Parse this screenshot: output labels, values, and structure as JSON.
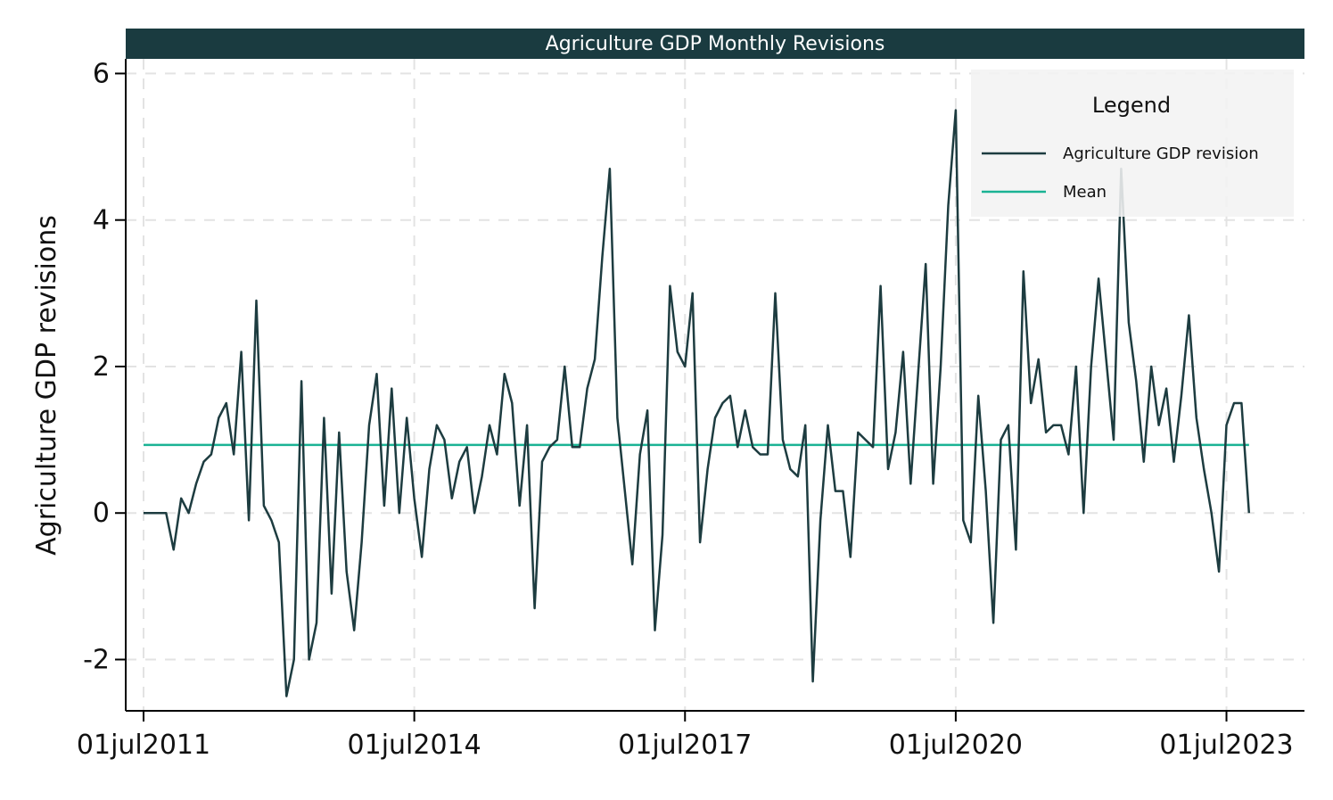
{
  "chart_data": {
    "type": "line",
    "title": "Agriculture GDP Monthly Revisions",
    "xlabel": "",
    "ylabel": "Agriculture GDP revisions",
    "x_start": "2011-07",
    "x_end": "2024-03",
    "xticks": [
      "01jul2011",
      "01jul2014",
      "01jul2017",
      "01jul2020",
      "01jul2023"
    ],
    "yticks": [
      "-2",
      "0",
      "2",
      "4",
      "6"
    ],
    "ylim": [
      -2.7,
      6.2
    ],
    "grid": true,
    "legend": {
      "title": "Legend",
      "placement": "top-right",
      "entries": [
        "Agriculture GDP revision",
        "Mean"
      ]
    },
    "colors": {
      "title_bar": "#1a3b40",
      "series": "#1d3c40",
      "mean": "#1ab394",
      "legend_bg": "#f2f2f2"
    },
    "series": [
      {
        "name": "Agriculture GDP revision",
        "x_start": "2011-07",
        "frequency": "monthly",
        "values": [
          0,
          0,
          0,
          0,
          -0.5,
          0.2,
          0,
          0.4,
          0.7,
          0.8,
          1.3,
          1.5,
          0.8,
          2.2,
          -0.1,
          2.9,
          0.1,
          -0.1,
          -0.4,
          -2.5,
          -2.0,
          1.8,
          -2.0,
          -1.5,
          1.3,
          -1.1,
          1.1,
          -0.8,
          -1.6,
          -0.4,
          1.2,
          1.9,
          0.1,
          1.7,
          0,
          1.3,
          0.2,
          -0.6,
          0.6,
          1.2,
          1.0,
          0.2,
          0.7,
          0.9,
          0,
          0.5,
          1.2,
          0.8,
          1.9,
          1.5,
          0.1,
          1.2,
          -1.3,
          0.7,
          0.9,
          1.0,
          2.0,
          0.9,
          0.9,
          1.7,
          2.1,
          3.5,
          4.7,
          1.3,
          0.3,
          -0.7,
          0.8,
          1.4,
          -1.6,
          -0.3,
          3.1,
          2.2,
          2.0,
          3.0,
          -0.4,
          0.6,
          1.3,
          1.5,
          1.6,
          0.9,
          1.4,
          0.9,
          0.8,
          0.8,
          3.0,
          1.0,
          0.6,
          0.5,
          1.2,
          -2.3,
          -0.1,
          1.2,
          0.3,
          0.3,
          -0.6,
          1.1,
          1.0,
          0.9,
          3.1,
          0.6,
          1.1,
          2.2,
          0.4,
          1.9,
          3.4,
          0.4,
          2.0,
          4.2,
          5.5,
          -0.1,
          -0.4,
          1.6,
          0.3,
          -1.5,
          1.0,
          1.2,
          -0.5,
          3.3,
          1.5,
          2.1,
          1.1,
          1.2,
          1.2,
          0.8,
          2.0,
          0,
          2.0,
          3.2,
          2.1,
          1.0,
          4.7,
          2.6,
          1.8,
          0.7,
          2.0,
          1.2,
          1.7,
          0.7,
          1.6,
          2.7,
          1.3,
          0.6,
          0,
          -0.8,
          1.2,
          1.5,
          1.5,
          0
        ]
      },
      {
        "name": "Mean",
        "values": [
          0.93
        ]
      }
    ]
  }
}
